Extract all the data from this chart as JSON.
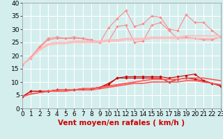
{
  "x": [
    0,
    1,
    2,
    3,
    4,
    5,
    6,
    7,
    8,
    9,
    10,
    11,
    12,
    13,
    14,
    15,
    16,
    17,
    18,
    19,
    20,
    21,
    22,
    23
  ],
  "series": [
    {
      "name": "rafales_jagged1",
      "color": "#ff8888",
      "linewidth": 0.8,
      "marker": "D",
      "markersize": 1.8,
      "values": [
        16.5,
        19.5,
        23.5,
        26.5,
        27.0,
        26.5,
        27.0,
        26.5,
        26.0,
        25.0,
        30.5,
        34.0,
        37.0,
        31.0,
        32.0,
        35.0,
        34.5,
        30.0,
        29.5,
        35.5,
        32.5,
        32.5,
        29.5,
        27.0
      ]
    },
    {
      "name": "rafales_jagged2",
      "color": "#ff8888",
      "linewidth": 0.8,
      "marker": "D",
      "markersize": 1.8,
      "values": [
        16.5,
        19.0,
        23.0,
        26.0,
        26.5,
        26.5,
        26.5,
        26.5,
        25.5,
        25.0,
        25.5,
        31.0,
        31.5,
        25.0,
        25.5,
        31.5,
        32.5,
        29.5,
        26.5,
        27.0,
        26.5,
        26.0,
        26.0,
        27.0
      ]
    },
    {
      "name": "rafales_trend1",
      "color": "#ffbbbb",
      "linewidth": 1.2,
      "marker": null,
      "markersize": 0,
      "values": [
        16.5,
        19.0,
        22.5,
        24.5,
        25.0,
        25.0,
        25.5,
        25.5,
        25.5,
        25.5,
        26.0,
        26.0,
        26.5,
        26.5,
        26.5,
        27.0,
        27.0,
        27.0,
        27.0,
        27.5,
        27.5,
        27.5,
        27.5,
        27.5
      ]
    },
    {
      "name": "rafales_trend2",
      "color": "#ffbbbb",
      "linewidth": 1.2,
      "marker": null,
      "markersize": 0,
      "values": [
        16.5,
        19.0,
        22.0,
        24.0,
        24.5,
        24.5,
        25.0,
        25.0,
        25.0,
        25.0,
        25.5,
        25.5,
        26.0,
        26.0,
        26.0,
        26.5,
        26.5,
        26.5,
        26.5,
        26.5,
        26.5,
        26.5,
        26.5,
        27.0
      ]
    },
    {
      "name": "wind_jagged1",
      "color": "#cc0000",
      "linewidth": 0.8,
      "marker": "D",
      "markersize": 1.8,
      "values": [
        4.5,
        6.5,
        6.5,
        6.5,
        7.0,
        7.0,
        7.0,
        7.5,
        7.5,
        8.0,
        9.5,
        11.5,
        12.0,
        12.0,
        12.0,
        12.0,
        12.0,
        11.5,
        12.0,
        12.5,
        13.0,
        10.5,
        9.5,
        8.5
      ]
    },
    {
      "name": "wind_jagged2",
      "color": "#cc0000",
      "linewidth": 0.8,
      "marker": "D",
      "markersize": 1.8,
      "values": [
        4.5,
        6.5,
        6.5,
        6.5,
        7.0,
        7.0,
        7.0,
        7.5,
        7.5,
        8.0,
        9.0,
        11.5,
        11.5,
        11.5,
        11.5,
        11.5,
        11.5,
        10.0,
        11.0,
        11.5,
        11.0,
        10.5,
        9.5,
        8.5
      ]
    },
    {
      "name": "wind_trend1",
      "color": "#ff5555",
      "linewidth": 1.2,
      "marker": null,
      "markersize": 0,
      "values": [
        4.5,
        5.5,
        6.0,
        6.5,
        7.0,
        7.0,
        7.0,
        7.5,
        7.5,
        8.0,
        8.5,
        9.0,
        9.5,
        10.0,
        10.5,
        11.0,
        11.0,
        11.0,
        11.0,
        11.5,
        11.5,
        11.5,
        11.0,
        10.5
      ]
    },
    {
      "name": "wind_trend2",
      "color": "#ff5555",
      "linewidth": 1.2,
      "marker": null,
      "markersize": 0,
      "values": [
        4.5,
        5.5,
        6.0,
        6.5,
        6.5,
        6.5,
        7.0,
        7.0,
        7.0,
        7.5,
        8.0,
        8.5,
        9.0,
        9.5,
        9.5,
        10.0,
        10.0,
        10.0,
        10.0,
        10.5,
        10.5,
        10.0,
        9.5,
        9.0
      ]
    }
  ],
  "xlabel": "Vent moyen/en rafales ( km/h )",
  "xlim": [
    0,
    23
  ],
  "ylim": [
    0,
    40
  ],
  "yticks": [
    0,
    5,
    10,
    15,
    20,
    25,
    30,
    35,
    40
  ],
  "xticks": [
    0,
    1,
    2,
    3,
    4,
    5,
    6,
    7,
    8,
    9,
    10,
    11,
    12,
    13,
    14,
    15,
    16,
    17,
    18,
    19,
    20,
    21,
    22,
    23
  ],
  "background_color": "#d4eeee",
  "grid_color": "#ffffff",
  "xlabel_color": "#cc0000",
  "xlabel_fontsize": 7.5,
  "tick_fontsize": 6.5
}
